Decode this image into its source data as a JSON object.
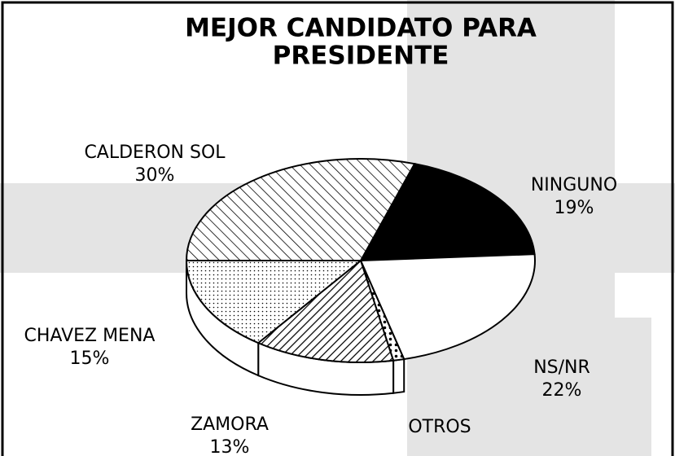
{
  "chart_data": {
    "type": "pie",
    "title": [
      "MEJOR CANDIDATO PARA",
      "PRESIDENTE"
    ],
    "categories": [
      "NINGUNO",
      "NS/NR",
      "OTROS",
      "ZAMORA",
      "CHAVEZ MENA",
      "CALDERON SOL"
    ],
    "values": [
      19,
      22,
      1,
      13,
      15,
      30
    ],
    "value_labels": [
      "19%",
      "22%",
      null,
      "13%",
      "15%",
      "30%"
    ]
  }
}
